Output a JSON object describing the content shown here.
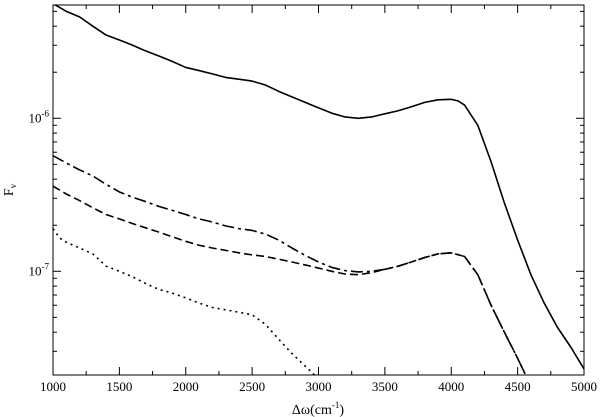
{
  "chart_data": {
    "type": "line",
    "xlabel": "Δω(cm⁻¹)",
    "xlabel_main": "Δω(cm",
    "xlabel_sup": "-1",
    "xlabel_end": ")",
    "ylabel": "F_v",
    "ylabel_main": "F",
    "ylabel_sub": "v",
    "xlim": [
      1000,
      5000
    ],
    "ylim": [
      2.1e-08,
      5.5e-06
    ],
    "yscale": "log",
    "grid": false,
    "legend": "none",
    "x_ticks": [
      1000,
      1500,
      2000,
      2500,
      3000,
      3500,
      4000,
      4500,
      5000
    ],
    "x_tick_labels": [
      "1000",
      "1500",
      "2000",
      "2500",
      "3000",
      "3500",
      "4000",
      "4500",
      "5000"
    ],
    "y_major_ticks": [
      {
        "value": 1e-07,
        "base": "10",
        "exp": "-7"
      },
      {
        "value": 1e-06,
        "base": "10",
        "exp": "-6"
      }
    ],
    "series": [
      {
        "dash": "solid",
        "x": [
          1000,
          1050,
          1100,
          1200,
          1300,
          1400,
          1500,
          1600,
          1700,
          1800,
          1900,
          2000,
          2100,
          2200,
          2300,
          2400,
          2500,
          2600,
          2700,
          2800,
          2900,
          3000,
          3100,
          3200,
          3300,
          3400,
          3500,
          3600,
          3700,
          3800,
          3900,
          4000,
          4050,
          4100,
          4200,
          4300,
          4400,
          4500,
          4600,
          4700,
          4800,
          4900,
          5000
        ],
        "y": [
          5.6e-06,
          5.3e-06,
          5e-06,
          4.6e-06,
          4e-06,
          3.5e-06,
          3.25e-06,
          3e-06,
          2.75e-06,
          2.55e-06,
          2.35e-06,
          2.15e-06,
          2.05e-06,
          1.95e-06,
          1.85e-06,
          1.8e-06,
          1.75e-06,
          1.65e-06,
          1.5e-06,
          1.38e-06,
          1.27e-06,
          1.17e-06,
          1.08e-06,
          1.02e-06,
          1e-06,
          1.02e-06,
          1.07e-06,
          1.12e-06,
          1.19e-06,
          1.27e-06,
          1.32e-06,
          1.33e-06,
          1.3e-06,
          1.22e-06,
          9e-07,
          5.2e-07,
          2.8e-07,
          1.6e-07,
          9.5e-08,
          6.2e-08,
          4.3e-08,
          3.2e-08,
          2.3e-08
        ]
      },
      {
        "dash": "dash-dot",
        "x": [
          1000,
          1100,
          1200,
          1300,
          1400,
          1500,
          1600,
          1700,
          1800,
          1900,
          2000,
          2100,
          2200,
          2300,
          2400,
          2500,
          2600,
          2700,
          2800,
          2900,
          3000,
          3100,
          3200,
          3300,
          3400,
          3500,
          3600,
          3700,
          3800,
          3900,
          4000,
          4100,
          4200,
          4300,
          4400,
          4500,
          4560
        ],
        "y": [
          5.7e-07,
          5.1e-07,
          4.6e-07,
          4.2e-07,
          3.7e-07,
          3.3e-07,
          3.05e-07,
          2.85e-07,
          2.65e-07,
          2.5e-07,
          2.35e-07,
          2.2e-07,
          2.1e-07,
          1.98e-07,
          1.9e-07,
          1.85e-07,
          1.75e-07,
          1.6e-07,
          1.42e-07,
          1.27e-07,
          1.15e-07,
          1.06e-07,
          1.01e-07,
          9.9e-08,
          1e-07,
          1.03e-07,
          1.08e-07,
          1.15e-07,
          1.23e-07,
          1.3e-07,
          1.32e-07,
          1.25e-07,
          9.5e-08,
          6e-08,
          4e-08,
          2.7e-08,
          2.1e-08
        ]
      },
      {
        "dash": "dashed",
        "x": [
          1000,
          1100,
          1200,
          1300,
          1400,
          1500,
          1600,
          1700,
          1800,
          1900,
          2000,
          2100,
          2200,
          2300,
          2400,
          2500,
          2600,
          2700,
          2800,
          2900,
          3000,
          3100,
          3200,
          3300,
          3400,
          3500,
          3600,
          3700,
          3800,
          3900,
          4000,
          4100,
          4200,
          4300,
          4400,
          4500,
          4560
        ],
        "y": [
          3.6e-07,
          3.2e-07,
          2.9e-07,
          2.6e-07,
          2.35e-07,
          2.2e-07,
          2.05e-07,
          1.92e-07,
          1.8e-07,
          1.68e-07,
          1.57e-07,
          1.48e-07,
          1.42e-07,
          1.37e-07,
          1.32e-07,
          1.28e-07,
          1.25e-07,
          1.2e-07,
          1.15e-07,
          1.1e-07,
          1.05e-07,
          1e-07,
          9.6e-08,
          9.5e-08,
          9.8e-08,
          1.03e-07,
          1.08e-07,
          1.15e-07,
          1.23e-07,
          1.3e-07,
          1.32e-07,
          1.25e-07,
          9.5e-08,
          6e-08,
          4e-08,
          2.7e-08,
          2.1e-08
        ]
      },
      {
        "dash": "dotted",
        "x": [
          1000,
          1050,
          1100,
          1200,
          1300,
          1400,
          1500,
          1600,
          1700,
          1800,
          1900,
          2000,
          2100,
          2200,
          2300,
          2400,
          2500,
          2600,
          2700,
          2800,
          2900,
          2970
        ],
        "y": [
          1.9e-07,
          1.65e-07,
          1.55e-07,
          1.42e-07,
          1.3e-07,
          1.08e-07,
          1e-07,
          9.2e-08,
          8.3e-08,
          7.6e-08,
          7.2e-08,
          6.7e-08,
          6.2e-08,
          5.8e-08,
          5.6e-08,
          5.4e-08,
          5.2e-08,
          4.5e-08,
          3.6e-08,
          2.9e-08,
          2.4e-08,
          2.1e-08
        ]
      }
    ]
  }
}
